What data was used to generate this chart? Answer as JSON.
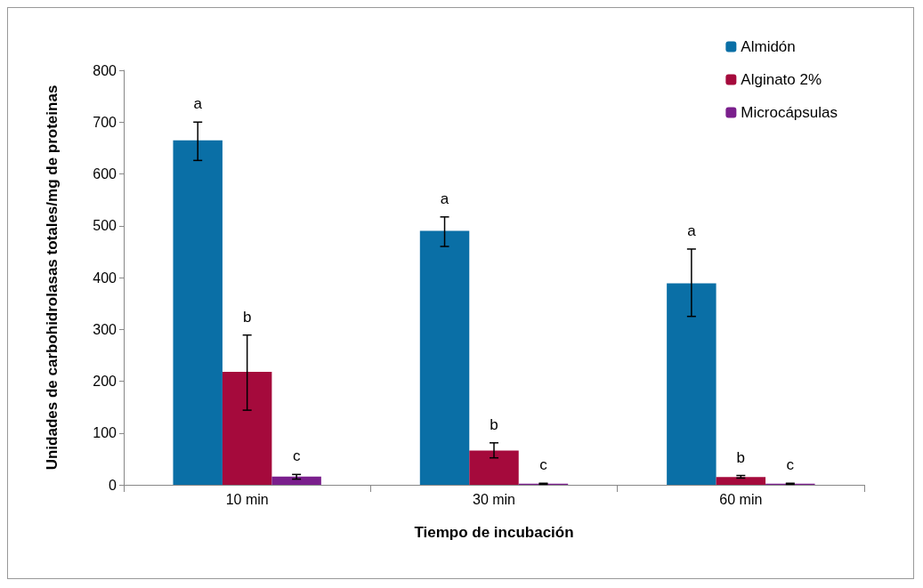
{
  "chart_data": {
    "type": "bar",
    "xlabel": "Tiempo de incubación",
    "ylabel": "Unidades de carbohidrolasas totales/mg de proteinas",
    "categories": [
      "10 min",
      "30 min",
      "60 min"
    ],
    "series": [
      {
        "name": "Almidón",
        "color": "#0a6fa6",
        "values": [
          665,
          490,
          389
        ],
        "errors": [
          [
            626,
            700
          ],
          [
            460,
            517
          ],
          [
            325,
            455
          ]
        ],
        "value_labels": [
          "a",
          "a",
          "a"
        ]
      },
      {
        "name": "Alginato 2%",
        "color": "#a50a3c",
        "values": [
          218,
          66,
          15
        ],
        "errors": [
          [
            144,
            289
          ],
          [
            52,
            81
          ],
          [
            13,
            18
          ]
        ],
        "value_labels": [
          "b",
          "b",
          "b"
        ]
      },
      {
        "name": "Microcápsulas",
        "color": "#7a1f8c",
        "values": [
          16,
          2,
          2
        ],
        "errors": [
          [
            11,
            20
          ],
          [
            1,
            3
          ],
          [
            1,
            3
          ]
        ],
        "value_labels": [
          "c",
          "c",
          "c"
        ]
      }
    ],
    "ylim": [
      0,
      800
    ],
    "yticks": [
      0,
      100,
      200,
      300,
      400,
      500,
      600,
      700,
      800
    ],
    "grid": false,
    "legend": "top right"
  }
}
